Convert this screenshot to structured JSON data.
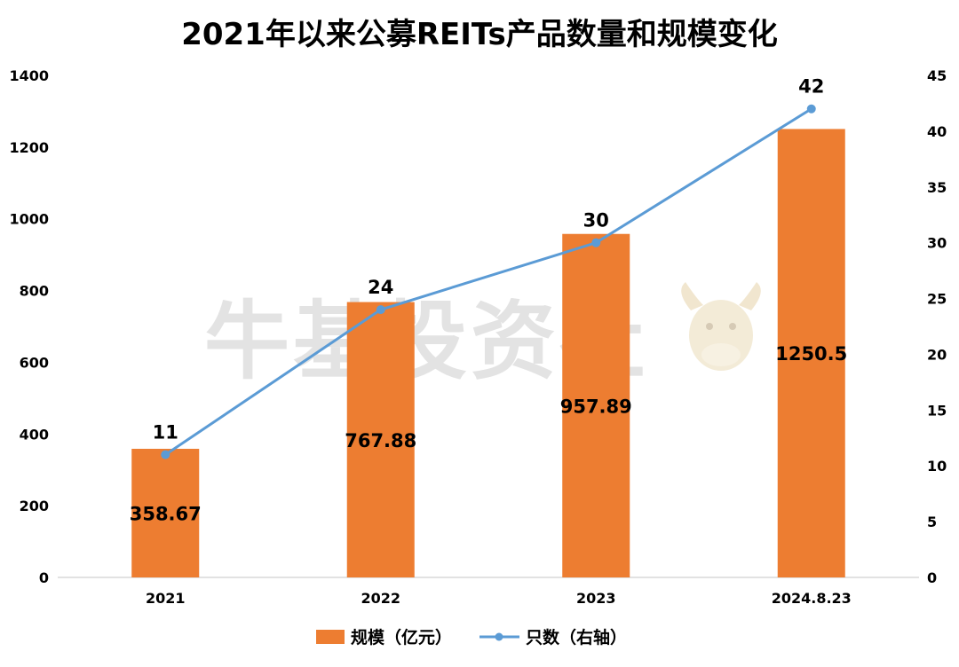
{
  "chart_data": {
    "type": "bar",
    "title": "2021年以来公募REITs产品数量和规模变化",
    "categories": [
      "2021",
      "2022",
      "2023",
      "2024.8.23"
    ],
    "series": [
      {
        "name": "规模（亿元）",
        "kind": "bar",
        "axis": "left",
        "values": [
          358.67,
          767.88,
          957.89,
          1250.5
        ],
        "labels": [
          "358.67",
          "767.88",
          "957.89",
          "1250.5"
        ]
      },
      {
        "name": "只数（右轴）",
        "kind": "line",
        "axis": "right",
        "values": [
          11,
          24,
          30,
          42
        ],
        "labels": [
          "11",
          "24",
          "30",
          "42"
        ]
      }
    ],
    "y_left": {
      "min": 0,
      "max": 1400,
      "ticks": [
        0,
        200,
        400,
        600,
        800,
        1000,
        1200,
        1400
      ]
    },
    "y_right": {
      "min": 0,
      "max": 45,
      "ticks": [
        0,
        5,
        10,
        15,
        20,
        25,
        30,
        35,
        40,
        45
      ]
    },
    "legend_position": "bottom-center",
    "watermark": "牛基投资社",
    "colors": {
      "bar": "#ED7D31",
      "line": "#5B9BD5",
      "axis": "#D9D9D9",
      "text": "#000000"
    }
  }
}
